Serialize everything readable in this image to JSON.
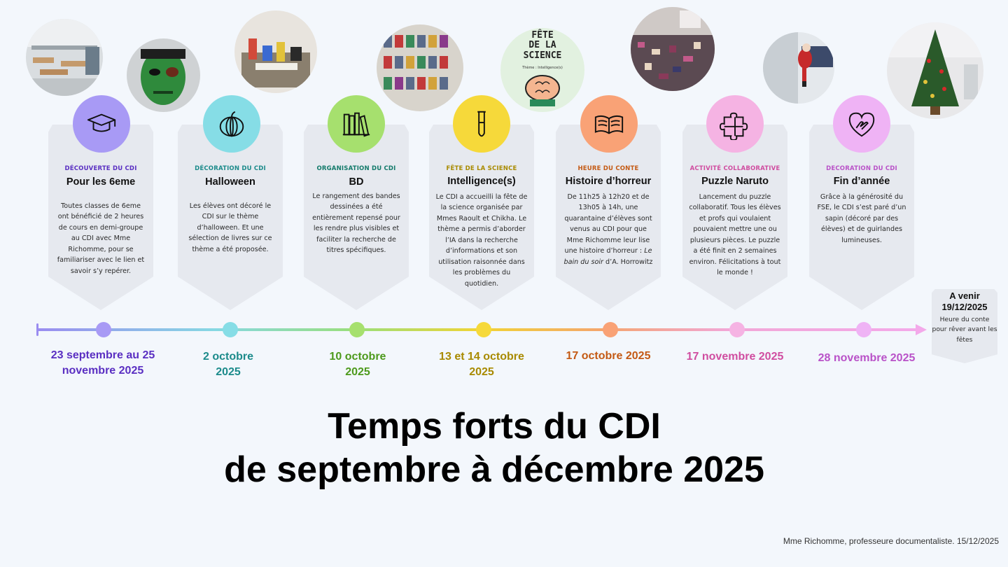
{
  "events": [
    {
      "category": "DÉCOUVERTE DU CDI",
      "title": "Pour les 6eme",
      "description": "Toutes classes de 6eme ont bénéficié de 2 heures de cours en demi-groupe au CDI avec Mme Richomme, pour se familiariser avec le lien et savoir s’y repérer.",
      "date": "23 septembre au 25 novembre 2025",
      "color": "#a89af5",
      "text_color": "#5a2fc2",
      "icon": "graduation-cap-icon"
    },
    {
      "category": "DÉCORATION DU CDI",
      "title": "Halloween",
      "description": "Les élèves ont décoré le CDI sur le thème d’halloween. Et une sélection de livres sur ce thème a été proposée.",
      "date": "2 octobre 2025",
      "color": "#86dde6",
      "text_color": "#1c8b8b",
      "icon": "pumpkin-icon"
    },
    {
      "category": "ORGANISATION DU CDI",
      "title": "BD",
      "description": "Le rangement des bandes dessinées a été entièrement repensé pour les rendre plus visibles et faciliter la recherche de titres spécifiques.",
      "date": "10 octobre 2025",
      "color": "#a6e06e",
      "text_color": "#4d9a1c",
      "icon": "books-icon"
    },
    {
      "category": "FÊTE DE LA SCIENCE",
      "title": "Intelligence(s)",
      "description": "Le CDI a accueilli la fête de la science organisée par Mmes Raoult et Chikha. Le thème a permis d’aborder l’IA dans la recherche d’informations et son utilisation raisonnée dans les problèmes du quotidien.",
      "date": "13 et 14 octobre 2025",
      "color": "#f6d93a",
      "text_color": "#a88a00",
      "icon": "test-tube-icon"
    },
    {
      "category": "HEURE DU CONTE",
      "title": "Histoire d’horreur",
      "description_before": "De 11h25 à 12h20 et de 13h05 à 14h, une quarantaine d’élèves sont venus au CDI pour que Mme Richomme leur lise une histoire d’horreur : ",
      "description_italic": "Le bain du soir",
      "description_after": " d’A. Horrowitz",
      "date": "17 octobre 2025",
      "color": "#f9a276",
      "text_color": "#c45a14",
      "icon": "open-book-icon"
    },
    {
      "category": "ACTIVITÉ COLLABORATIVE",
      "title": "Puzzle Naruto",
      "description": "Lancement du puzzle collaboratif. Tous les élèves et profs qui voulaient pouvaient mettre une ou plusieurs pièces. Le puzzle a été finit en 2 semaines environ. Félicitations à tout le monde !",
      "date": "17 novembre 2025",
      "color": "#f5b3e3",
      "text_color": "#d04da0",
      "icon": "puzzle-icon"
    },
    {
      "category": "DECORATION DU CDI",
      "title": "Fin d’année",
      "description": "Grâce à la générosité du FSE, le CDI s’est paré d’un sapin (décoré par des élèves) et de guirlandes lumineuses.",
      "date": "28 novembre 2025",
      "color": "#efb3f5",
      "text_color": "#b952c8",
      "icon": "heart-hand-icon"
    }
  ],
  "upcoming": {
    "heading": "A venir 19/12/2025",
    "description": "Heure du conte pour rêver avant les fêtes"
  },
  "title_line1": "Temps forts du CDI",
  "title_line2": "de septembre à décembre 2025",
  "footer": "Mme Richomme, professeure documentaliste. 15/12/2025",
  "photo_poster": {
    "line1": "FÊTE",
    "line2": "DE LA",
    "line3": "SCIENCE",
    "theme": "Thème : Intelligence(s)"
  }
}
